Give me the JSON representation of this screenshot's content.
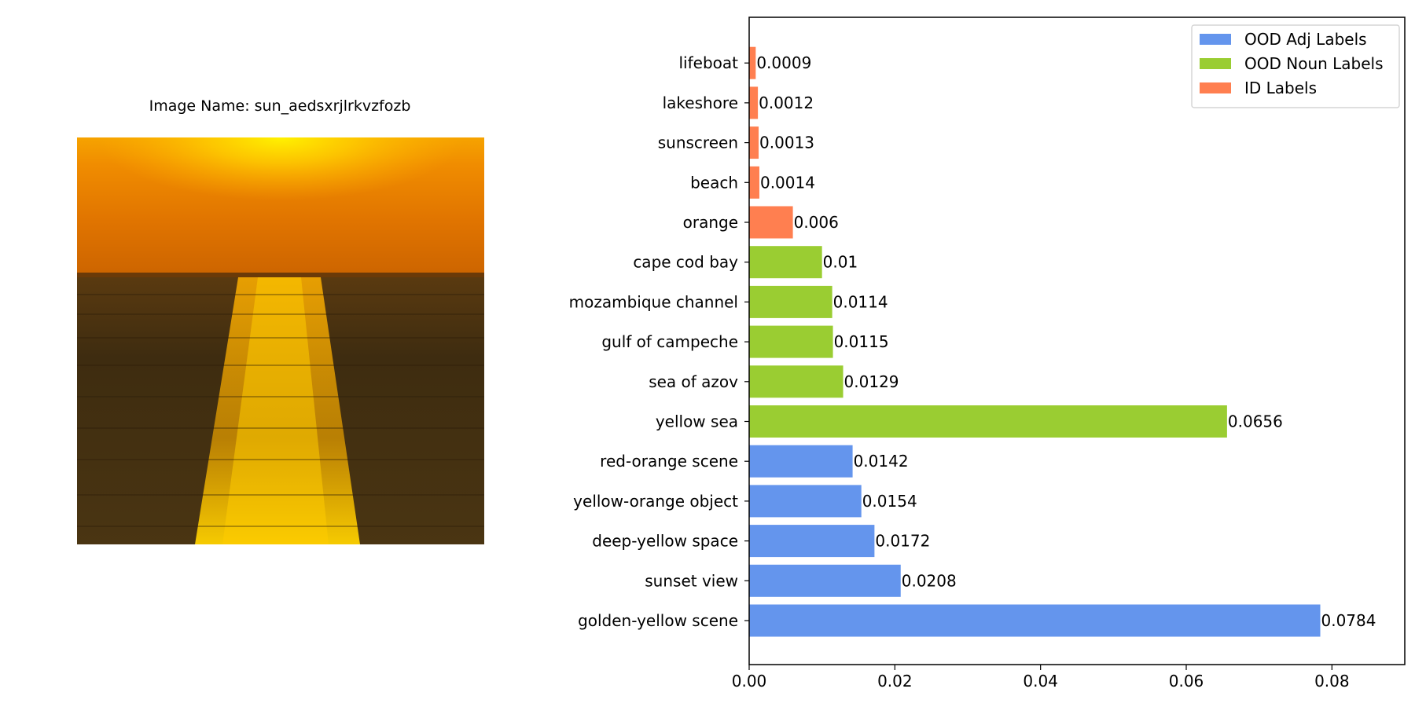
{
  "image_panel": {
    "title": "Image Name: sun_aedsxrjlrkvzfozb",
    "photo_description": "sunset over water"
  },
  "chart_data": {
    "type": "bar",
    "orientation": "horizontal",
    "categories": [
      "golden-yellow scene",
      "sunset view",
      "deep-yellow space",
      "yellow-orange object",
      "red-orange scene",
      "yellow sea",
      "sea of azov",
      "gulf of campeche",
      "mozambique channel",
      "cape cod bay",
      "orange",
      "beach",
      "sunscreen",
      "lakeshore",
      "lifeboat"
    ],
    "values": [
      0.0784,
      0.0208,
      0.0172,
      0.0154,
      0.0142,
      0.0656,
      0.0129,
      0.0115,
      0.0114,
      0.01,
      0.006,
      0.0014,
      0.0013,
      0.0012,
      0.0009
    ],
    "value_labels": [
      "0.0784",
      "0.0208",
      "0.0172",
      "0.0154",
      "0.0142",
      "0.0656",
      "0.0129",
      "0.0115",
      "0.0114",
      "0.01",
      "0.006",
      "0.0014",
      "0.0013",
      "0.0012",
      "0.0009"
    ],
    "groups": [
      "adj",
      "adj",
      "adj",
      "adj",
      "adj",
      "noun",
      "noun",
      "noun",
      "noun",
      "noun",
      "id",
      "id",
      "id",
      "id",
      "id"
    ],
    "series": [
      {
        "key": "adj",
        "name": "OOD Adj Labels",
        "color": "#6495ED"
      },
      {
        "key": "noun",
        "name": "OOD Noun Labels",
        "color": "#9ACD32"
      },
      {
        "key": "id",
        "name": "ID Labels",
        "color": "#FF7F50"
      }
    ],
    "xlim": [
      0,
      0.09
    ],
    "xticks": [
      0.0,
      0.02,
      0.04,
      0.06,
      0.08
    ],
    "xtick_labels": [
      "0.00",
      "0.02",
      "0.04",
      "0.06",
      "0.08"
    ],
    "xlabel": "",
    "ylabel": "",
    "grid": false,
    "legend_position": "top-right"
  }
}
